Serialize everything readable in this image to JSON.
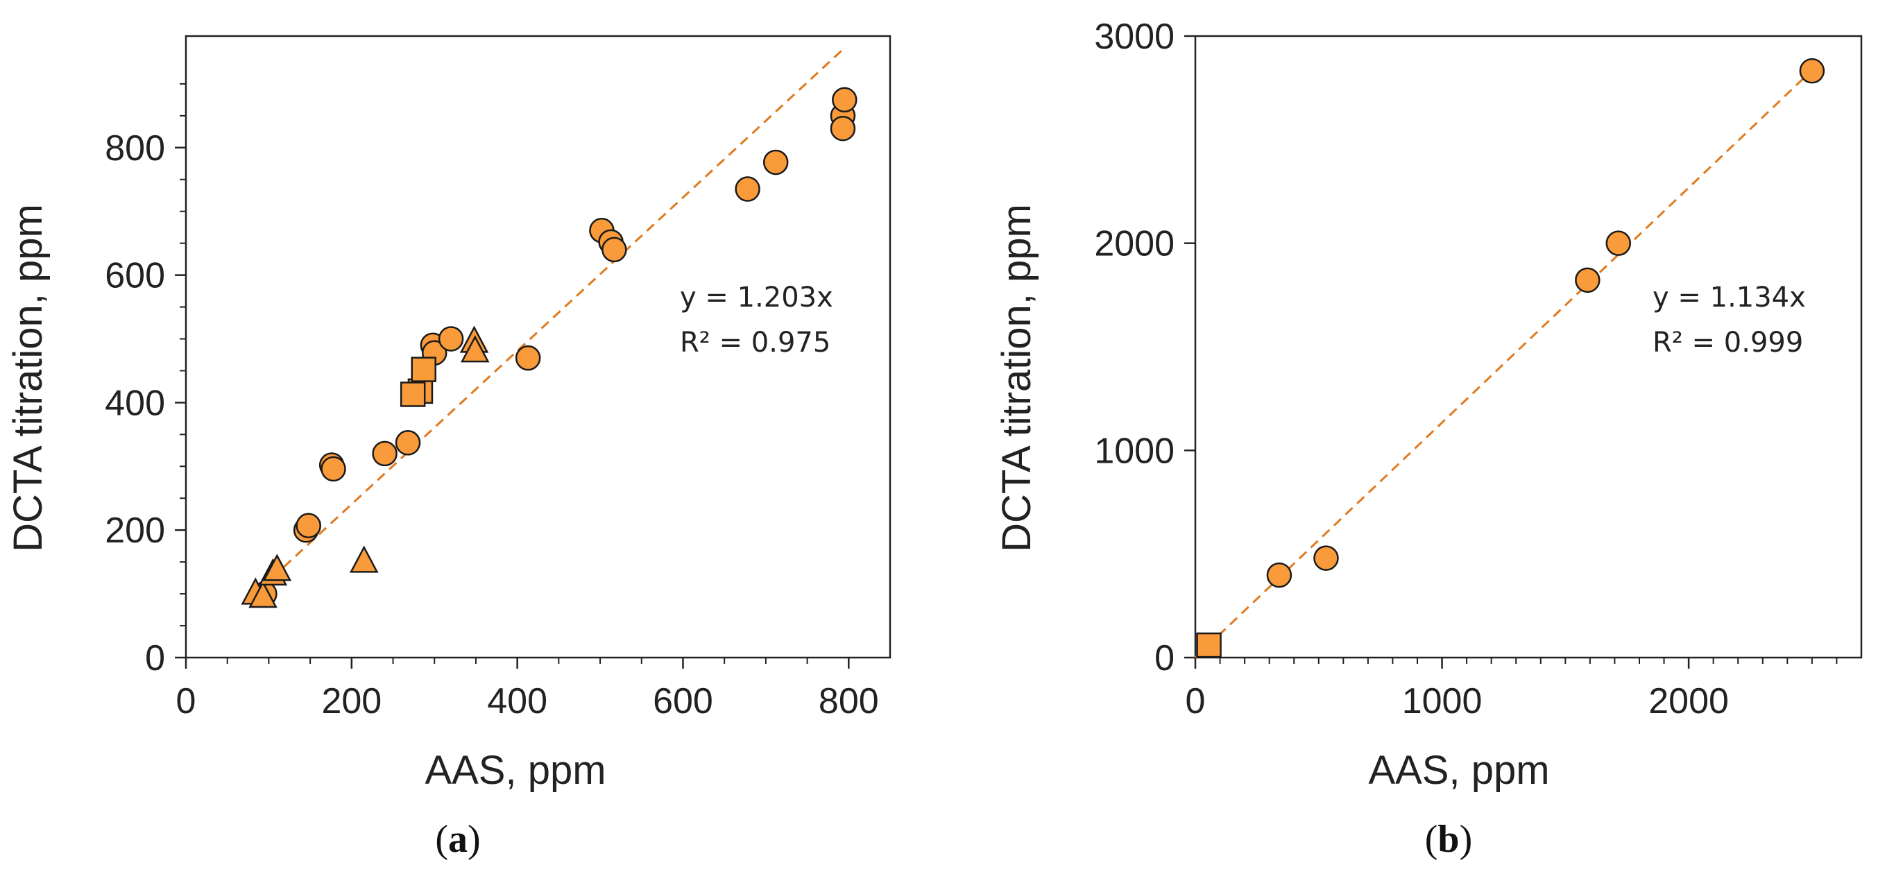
{
  "colors": {
    "marker_fill": "#F99B3A",
    "marker_stroke": "#1a1a1a",
    "trend_line": "#E07A1F",
    "axis": "#222222"
  },
  "chart_data": [
    {
      "panel_label": "a",
      "type": "scatter",
      "xlabel": "AAS, ppm",
      "ylabel": "DCTA titration, ppm",
      "xlim": [
        0,
        850
      ],
      "ylim": [
        0,
        975
      ],
      "xticks": [
        0,
        200,
        400,
        600,
        800
      ],
      "yticks": [
        0,
        200,
        400,
        600,
        800
      ],
      "xticks_minor": [
        50,
        100,
        150,
        250,
        300,
        350,
        450,
        500,
        550,
        650,
        700,
        750
      ],
      "yticks_minor": [
        50,
        100,
        150,
        250,
        300,
        350,
        450,
        500,
        550,
        650,
        700,
        750,
        850,
        900
      ],
      "trendline": {
        "slope": 1.203,
        "x_range": [
          90,
          795
        ]
      },
      "equation": "y = 1.203x",
      "r_squared": "R² = 0.975",
      "series": [
        {
          "name": "circles",
          "marker": "circle",
          "points": [
            [
              95,
              100
            ],
            [
              145,
              200
            ],
            [
              148,
              207
            ],
            [
              176,
              302
            ],
            [
              178,
              296
            ],
            [
              240,
              320
            ],
            [
              268,
              337
            ],
            [
              298,
              490
            ],
            [
              300,
              478
            ],
            [
              320,
              500
            ],
            [
              413,
              470
            ],
            [
              502,
              670
            ],
            [
              513,
              652
            ],
            [
              517,
              640
            ],
            [
              678,
              735
            ],
            [
              712,
              777
            ],
            [
              793,
              850
            ],
            [
              795,
              875
            ],
            [
              793,
              830
            ]
          ]
        },
        {
          "name": "squares",
          "marker": "square",
          "points": [
            [
              283,
              418
            ],
            [
              287,
              452
            ],
            [
              274,
              413
            ]
          ]
        },
        {
          "name": "triangles",
          "marker": "triangle",
          "points": [
            [
              84,
              100
            ],
            [
              93,
              95
            ],
            [
              105,
              130
            ],
            [
              110,
              137
            ],
            [
              215,
              150
            ],
            [
              348,
              495
            ],
            [
              349,
              480
            ]
          ]
        }
      ]
    },
    {
      "panel_label": "b",
      "type": "scatter",
      "xlabel": "AAS, ppm",
      "ylabel": "DCTA titration, ppm",
      "xlim": [
        0,
        2700
      ],
      "ylim": [
        0,
        3000
      ],
      "xticks": [
        0,
        1000,
        2000
      ],
      "yticks": [
        0,
        1000,
        2000,
        3000
      ],
      "xticks_minor": [
        100,
        200,
        300,
        400,
        500,
        600,
        700,
        800,
        900,
        1100,
        1200,
        1300,
        1400,
        1500,
        1600,
        1700,
        1800,
        1900,
        2100,
        2200,
        2300,
        2400,
        2500,
        2600
      ],
      "yticks_minor": [],
      "trendline": {
        "slope": 1.134,
        "x_range": [
          0,
          2500
        ]
      },
      "equation": "y = 1.134x",
      "r_squared": "R² = 0.999",
      "series": [
        {
          "name": "circles",
          "marker": "circle",
          "points": [
            [
              340,
              398
            ],
            [
              530,
              480
            ],
            [
              1590,
              1822
            ],
            [
              1715,
              2000
            ],
            [
              2500,
              2832
            ]
          ]
        },
        {
          "name": "squares",
          "marker": "square",
          "points": [
            [
              55,
              60
            ]
          ]
        }
      ]
    }
  ]
}
